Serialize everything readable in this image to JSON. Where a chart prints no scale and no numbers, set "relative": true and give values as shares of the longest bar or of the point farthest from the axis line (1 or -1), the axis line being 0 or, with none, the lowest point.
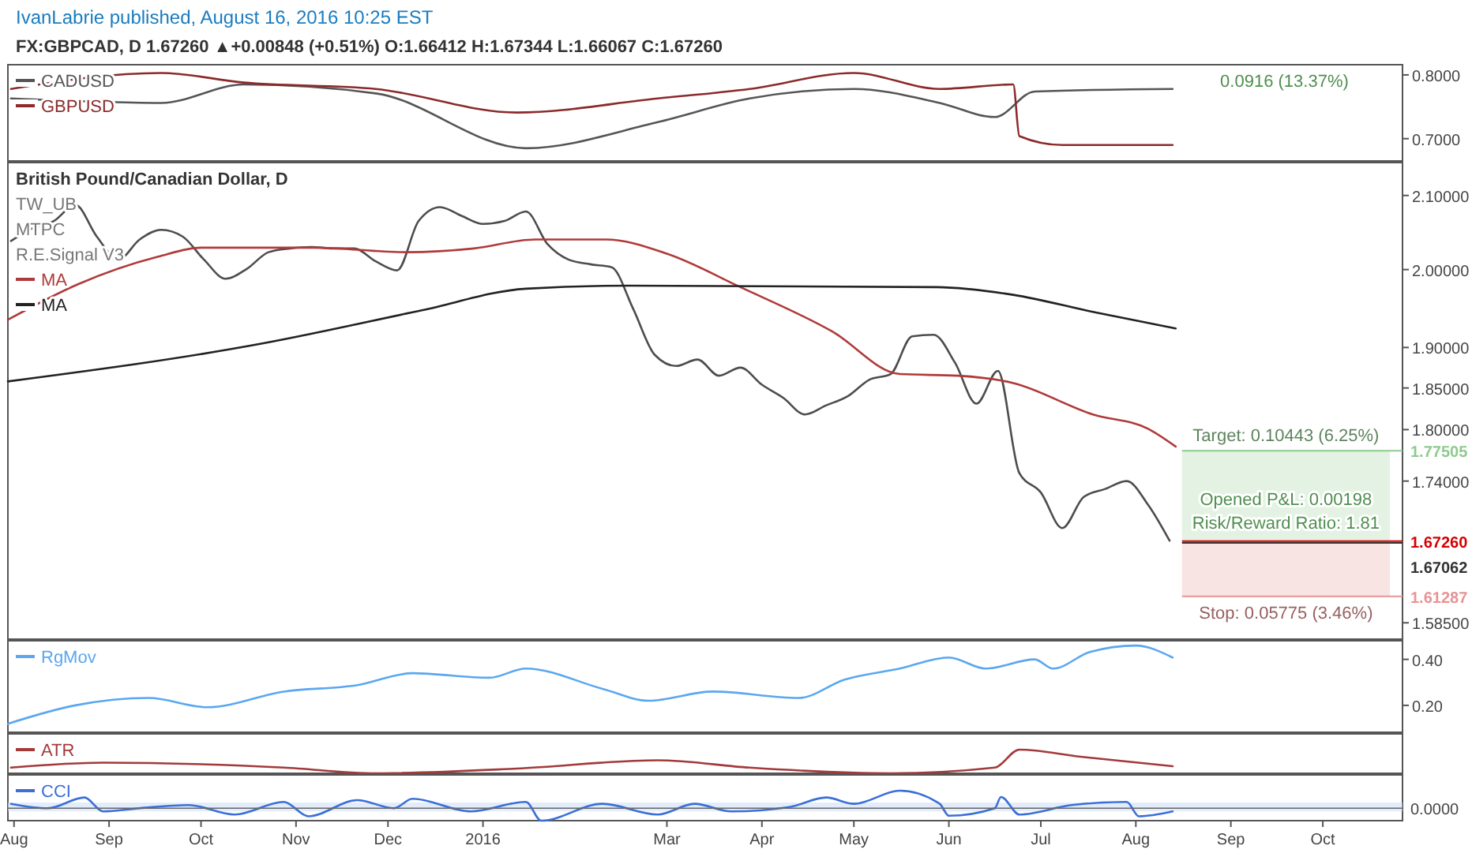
{
  "chart_data": [
    {
      "type": "line",
      "title": "IvanLabrie published, August 16, 2016 10:25 EST",
      "subtitle": "FX:GBPCAD, D 1.67260 ▲+0.00848 (+0.51%) O:1.66412 H:1.67344 L:1.66067 C:1.67260",
      "xlim": [
        "2015-07-30",
        "2016-10-27"
      ],
      "ylim": [
        0.665,
        0.816
      ],
      "yticks": [
        {
          "value": 0.8,
          "label": "0.8000"
        },
        {
          "value": 0.7,
          "label": "0.7000"
        }
      ],
      "tick_labels": "y",
      "legend": "top left",
      "annotations": [
        "0.0916 (13.37%)"
      ],
      "x": [
        "2015-07-31",
        "2015-09-18",
        "2015-10-15",
        "2015-11-27",
        "2016-01-12",
        "2016-01-15",
        "2016-02-27",
        "2016-03-28",
        "2016-05-01",
        "2016-05-29",
        "2016-06-16",
        "2016-06-22",
        "2016-06-24",
        "2016-06-29",
        "2016-07-08",
        "2016-08-13"
      ],
      "series": [
        {
          "name": "CADUSD",
          "color": "#555555",
          "values": [
            0.763,
            0.756,
            0.785,
            0.771,
            null,
            0.685,
            0.726,
            0.763,
            0.778,
            0.756,
            0.734,
            null,
            null,
            0.774,
            null,
            0.778
          ]
        },
        {
          "name": "GBPUSD",
          "color": "#8b2a2a",
          "values": [
            0.778,
            0.803,
            0.788,
            0.778,
            0.741,
            null,
            0.763,
            0.778,
            0.803,
            0.778,
            null,
            0.785,
            0.704,
            null,
            0.69,
            0.69
          ]
        }
      ]
    },
    {
      "type": "line",
      "title": "British Pound/Canadian Dollar, D",
      "xlim": [
        "2015-07-30",
        "2016-10-27"
      ],
      "ylim": [
        1.568,
        2.146
      ],
      "log": true,
      "tick_labels": "y",
      "legend": "top left",
      "yticks": [
        {
          "value": 2.1,
          "label": "2.10000"
        },
        {
          "value": 2.0,
          "label": "2.00000"
        },
        {
          "value": 1.9,
          "label": "1.90000"
        },
        {
          "value": 1.85,
          "label": "1.85000"
        },
        {
          "value": 1.8,
          "label": "1.80000"
        },
        {
          "value": 1.74,
          "label": "1.74000"
        },
        {
          "value": 1.585,
          "label": "1.58500"
        }
      ],
      "annotations": [
        "TW_UB",
        "MTPC",
        "R.E.Signal V3",
        "Opened P&L: 0.00198",
        "Risk/Reward Ratio: 1.81"
      ],
      "bands": [
        {
          "axis": "y",
          "from": 1.6726,
          "to": 1.77505,
          "label": "Target: 0.10443 (6.25%)",
          "color": "#8fca8f"
        },
        {
          "axis": "y",
          "from": 1.61287,
          "to": 1.6726,
          "label": "Stop: 0.05775 (3.46%)",
          "color": "#e89494"
        }
      ],
      "ref_lines": [
        {
          "axis": "y",
          "value": 1.77505,
          "label": "1.77505",
          "color": "#8fca8f"
        },
        {
          "axis": "y",
          "value": 1.6726,
          "label": "1.67260",
          "color": "#d50000"
        },
        {
          "axis": "y",
          "value": 1.67062,
          "label": "1.67062",
          "color": "#333333"
        },
        {
          "axis": "y",
          "value": 1.61287,
          "label": "1.61287",
          "color": "#e89494"
        }
      ],
      "x": [
        "2015-07-31",
        "2015-08-07",
        "2015-08-14",
        "2015-08-21",
        "2015-08-28",
        "2015-09-04",
        "2015-09-11",
        "2015-09-18",
        "2015-09-25",
        "2015-10-02",
        "2015-10-09",
        "2015-10-16",
        "2015-10-23",
        "2015-10-30",
        "2015-11-06",
        "2015-11-13",
        "2015-11-20",
        "2015-11-27",
        "2015-12-04",
        "2015-12-11",
        "2015-12-18",
        "2015-12-25",
        "2016-01-01",
        "2016-01-08",
        "2016-01-15",
        "2016-01-22",
        "2016-01-29",
        "2016-02-05",
        "2016-02-12",
        "2016-02-19",
        "2016-02-26",
        "2016-03-04",
        "2016-03-11",
        "2016-03-18",
        "2016-03-25",
        "2016-04-01",
        "2016-04-08",
        "2016-04-15",
        "2016-04-22",
        "2016-04-29",
        "2016-05-06",
        "2016-05-13",
        "2016-05-20",
        "2016-05-27",
        "2016-06-03",
        "2016-06-10",
        "2016-06-17",
        "2016-06-24",
        "2016-07-01",
        "2016-07-08",
        "2016-07-15",
        "2016-07-22",
        "2016-07-29",
        "2016-08-05",
        "2016-08-12"
      ],
      "series": [
        {
          "color": "#4d4d4d",
          "values": [
            2.038,
            2.055,
            2.065,
            2.087,
            2.044,
            2.013,
            2.04,
            2.053,
            2.044,
            2.013,
            1.988,
            2.001,
            2.023,
            2.028,
            2.03,
            2.028,
            2.028,
            2.011,
            1.999,
            2.065,
            2.084,
            2.072,
            2.061,
            2.065,
            2.078,
            2.034,
            2.013,
            2.007,
            2.003,
            1.949,
            1.891,
            1.877,
            1.885,
            1.865,
            1.875,
            1.854,
            1.838,
            1.818,
            1.829,
            1.84,
            1.86,
            1.867,
            1.914,
            1.916,
            1.881,
            1.831,
            1.871,
            1.749,
            1.727,
            1.687,
            1.722,
            1.731,
            1.74,
            1.713,
            1.673
          ]
        },
        {
          "name": "MA",
          "color": "#b03a3a",
          "x": [
            "2015-07-30",
            "2015-08-22",
            "2015-09-17",
            "2015-10-01",
            "2015-11-07",
            "2015-12-07",
            "2015-12-29",
            "2016-01-18",
            "2016-02-10",
            "2016-03-01",
            "2016-03-25",
            "2016-04-24",
            "2016-05-16",
            "2016-06-04",
            "2016-06-22",
            "2016-07-18",
            "2016-08-05",
            "2016-08-14"
          ],
          "values": [
            1.935,
            1.981,
            2.017,
            2.029,
            2.029,
            2.023,
            2.028,
            2.04,
            2.04,
            2.021,
            1.977,
            1.92,
            1.867,
            1.865,
            1.856,
            1.818,
            1.801,
            1.78
          ]
        },
        {
          "name": "MA",
          "color": "#222222",
          "x": [
            "2015-07-30",
            "2015-10-21",
            "2015-12-12",
            "2016-01-15",
            "2016-02-18",
            "2016-05-28",
            "2016-06-22",
            "2016-07-18",
            "2016-08-14"
          ],
          "values": [
            1.858,
            1.905,
            1.947,
            1.975,
            1.979,
            1.977,
            1.967,
            1.945,
            1.924
          ]
        }
      ]
    },
    {
      "type": "line",
      "xlim": [
        "2015-07-30",
        "2016-10-27"
      ],
      "ylim": [
        0.083,
        0.481
      ],
      "yticks": [
        {
          "value": 0.4,
          "label": "0.40"
        },
        {
          "value": 0.2,
          "label": "0.20"
        }
      ],
      "tick_labels": "y",
      "legend": "top left",
      "x": [
        "2015-07-30",
        "2015-08-21",
        "2015-09-14",
        "2015-10-03",
        "2015-10-28",
        "2015-11-21",
        "2015-12-09",
        "2016-01-03",
        "2016-01-15",
        "2016-02-09",
        "2016-02-24",
        "2016-03-16",
        "2016-04-13",
        "2016-04-28",
        "2016-05-16",
        "2016-06-01",
        "2016-06-13",
        "2016-06-29",
        "2016-07-05",
        "2016-07-17",
        "2016-08-01",
        "2016-08-13"
      ],
      "series": [
        {
          "name": "RgMov",
          "color": "#5aa7f0",
          "values": [
            0.12,
            0.2,
            0.232,
            0.192,
            0.26,
            0.288,
            0.34,
            0.32,
            0.36,
            0.272,
            0.22,
            0.26,
            0.232,
            0.312,
            0.36,
            0.408,
            0.36,
            0.4,
            0.36,
            0.432,
            0.46,
            0.408
          ]
        }
      ]
    },
    {
      "type": "line",
      "relative": true,
      "xlim": [
        "2015-07-30",
        "2016-10-27"
      ],
      "tick_labels": false,
      "legend": "top left",
      "x": [
        "2015-07-31",
        "2015-08-30",
        "2015-10-28",
        "2015-11-27",
        "2016-01-12",
        "2016-02-27",
        "2016-03-28",
        "2016-05-13",
        "2016-06-16",
        "2016-06-24",
        "2016-07-14",
        "2016-08-13"
      ],
      "series": [
        {
          "name": "ATR",
          "color": "#a33a3a",
          "values": [
            0.24,
            0.45,
            0.24,
            0,
            0.2,
            0.55,
            0.24,
            0,
            0.24,
            1,
            0.7,
            0.3
          ]
        }
      ]
    },
    {
      "type": "line",
      "relative": true,
      "xlim": [
        "2015-07-30",
        "2016-10-27"
      ],
      "tick_labels": "x",
      "legend": "top left",
      "xticks": [
        {
          "value": "2015-08-01",
          "label": "Aug"
        },
        {
          "value": "2015-09-01",
          "label": "Sep"
        },
        {
          "value": "2015-10-01",
          "label": "Oct"
        },
        {
          "value": "2015-11-01",
          "label": "Nov"
        },
        {
          "value": "2015-12-01",
          "label": "Dec"
        },
        {
          "value": "2016-01-01",
          "label": "2016"
        },
        {
          "value": "2016-03-01",
          "label": "Mar"
        },
        {
          "value": "2016-04-01",
          "label": "Apr"
        },
        {
          "value": "2016-05-01",
          "label": "May"
        },
        {
          "value": "2016-06-01",
          "label": "Jun"
        },
        {
          "value": "2016-07-01",
          "label": "Jul"
        },
        {
          "value": "2016-08-01",
          "label": "Aug"
        },
        {
          "value": "2016-09-01",
          "label": "Sep"
        },
        {
          "value": "2016-10-01",
          "label": "Oct"
        }
      ],
      "bands": [
        {
          "axis": "y",
          "from": -0.18,
          "to": 0.32,
          "color": "#cfe0f7"
        }
      ],
      "ref_lines": [
        {
          "axis": "y",
          "value": 0,
          "label": "0.0000",
          "color": "#666666"
        }
      ],
      "x": [
        "2015-07-31",
        "2015-08-12",
        "2015-08-24",
        "2015-08-30",
        "2015-09-11",
        "2015-09-27",
        "2015-10-12",
        "2015-10-28",
        "2015-11-05",
        "2015-11-21",
        "2015-12-03",
        "2015-12-09",
        "2015-12-28",
        "2016-01-15",
        "2016-01-20",
        "2016-02-09",
        "2016-02-27",
        "2016-03-10",
        "2016-03-22",
        "2016-04-10",
        "2016-04-22",
        "2016-05-01",
        "2016-05-16",
        "2016-05-29",
        "2016-06-01",
        "2016-06-16",
        "2016-06-18",
        "2016-06-24",
        "2016-07-11",
        "2016-07-29",
        "2016-08-02",
        "2016-08-13"
      ],
      "series": [
        {
          "name": "CCI",
          "color": "#3a6fd8",
          "values": [
            0.25,
            0,
            0.61,
            -0.18,
            0,
            0.18,
            -0.36,
            0.36,
            -0.46,
            0.46,
            0,
            0.54,
            -0.18,
            0.36,
            -0.71,
            0.25,
            -0.36,
            0.25,
            -0.18,
            0.07,
            0.61,
            0.25,
            1,
            0.25,
            -0.43,
            0,
            0.64,
            -0.36,
            0.18,
            0.36,
            -0.46,
            -0.18
          ]
        }
      ]
    }
  ]
}
